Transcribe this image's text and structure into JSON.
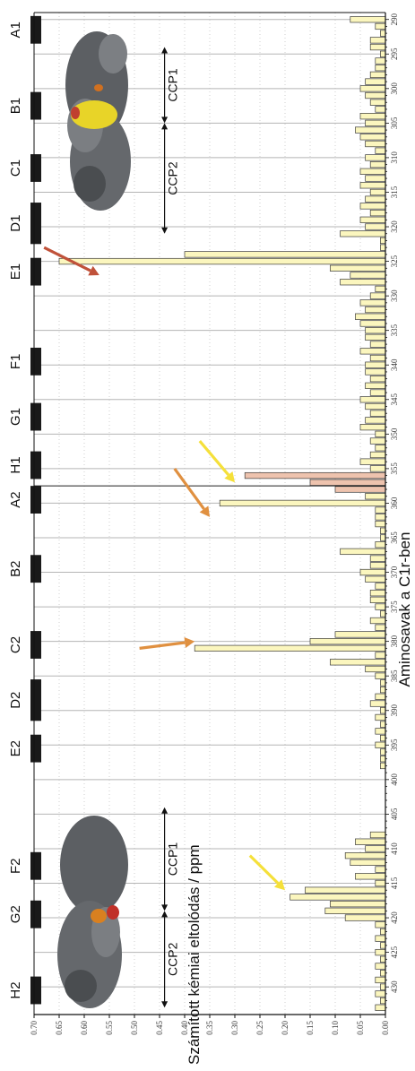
{
  "chart_data": {
    "type": "bar",
    "orientation": "horizontal",
    "xlabel": "Aminosavak a C1r-ben",
    "ylabel": "Számított kémiai eltolódás / ppm",
    "ylim": [
      0,
      0.7
    ],
    "y_ticks": [
      "0.00",
      "0.05",
      "0.10",
      "0.15",
      "0.20",
      "0.25",
      "0.30",
      "0.35",
      "0.40",
      "0.45",
      "0.50",
      "0.55",
      "0.60",
      "0.65",
      "0.70"
    ],
    "xlim": [
      289,
      434
    ],
    "x_ticks": [
      "290",
      "295",
      "300",
      "305",
      "310",
      "315",
      "320",
      "325",
      "330",
      "335",
      "340",
      "345",
      "350",
      "355",
      "360",
      "365",
      "370",
      "375",
      "380",
      "385",
      "390",
      "395",
      "400",
      "405",
      "410",
      "415",
      "420",
      "425",
      "430"
    ],
    "colors": {
      "default_bar": "#FBF6BE",
      "highlight_bar": "#EEC3AE",
      "bar_stroke": "#3b3b3b",
      "strand": "#1a1a1a"
    },
    "values": [
      {
        "x": 290,
        "y": 0.07
      },
      {
        "x": 291,
        "y": 0.02
      },
      {
        "x": 292,
        "y": 0.01
      },
      {
        "x": 293,
        "y": 0.03
      },
      {
        "x": 294,
        "y": 0.03
      },
      {
        "x": 295,
        "y": 0.01
      },
      {
        "x": 296,
        "y": 0.02
      },
      {
        "x": 297,
        "y": 0.02
      },
      {
        "x": 298,
        "y": 0.03
      },
      {
        "x": 299,
        "y": 0.04
      },
      {
        "x": 300,
        "y": 0.05
      },
      {
        "x": 301,
        "y": 0.04
      },
      {
        "x": 302,
        "y": 0.03
      },
      {
        "x": 303,
        "y": 0.02
      },
      {
        "x": 304,
        "y": 0.05
      },
      {
        "x": 305,
        "y": 0.04
      },
      {
        "x": 306,
        "y": 0.06
      },
      {
        "x": 307,
        "y": 0.05
      },
      {
        "x": 308,
        "y": 0.04
      },
      {
        "x": 309,
        "y": 0.02
      },
      {
        "x": 310,
        "y": 0.04
      },
      {
        "x": 311,
        "y": 0.03
      },
      {
        "x": 312,
        "y": 0.05
      },
      {
        "x": 313,
        "y": 0.04
      },
      {
        "x": 314,
        "y": 0.05
      },
      {
        "x": 315,
        "y": 0.03
      },
      {
        "x": 316,
        "y": 0.04
      },
      {
        "x": 317,
        "y": 0.05
      },
      {
        "x": 318,
        "y": 0.03
      },
      {
        "x": 319,
        "y": 0.05
      },
      {
        "x": 320,
        "y": 0.04
      },
      {
        "x": 321,
        "y": 0.09
      },
      {
        "x": 322,
        "y": 0.01
      },
      {
        "x": 323,
        "y": 0.01
      },
      {
        "x": 324,
        "y": 0.4
      },
      {
        "x": 325,
        "y": 0.65
      },
      {
        "x": 326,
        "y": 0.11
      },
      {
        "x": 327,
        "y": 0.07
      },
      {
        "x": 328,
        "y": 0.09
      },
      {
        "x": 329,
        "y": 0.02
      },
      {
        "x": 330,
        "y": 0.03
      },
      {
        "x": 331,
        "y": 0.05
      },
      {
        "x": 332,
        "y": 0.04
      },
      {
        "x": 333,
        "y": 0.06
      },
      {
        "x": 334,
        "y": 0.05
      },
      {
        "x": 335,
        "y": 0.04
      },
      {
        "x": 336,
        "y": 0.04
      },
      {
        "x": 337,
        "y": 0.03
      },
      {
        "x": 338,
        "y": 0.05
      },
      {
        "x": 339,
        "y": 0.03
      },
      {
        "x": 340,
        "y": 0.04
      },
      {
        "x": 341,
        "y": 0.04
      },
      {
        "x": 342,
        "y": 0.03
      },
      {
        "x": 343,
        "y": 0.04
      },
      {
        "x": 344,
        "y": 0.03
      },
      {
        "x": 345,
        "y": 0.05
      },
      {
        "x": 346,
        "y": 0.04
      },
      {
        "x": 347,
        "y": 0.03
      },
      {
        "x": 348,
        "y": 0.04
      },
      {
        "x": 349,
        "y": 0.05
      },
      {
        "x": 350,
        "y": 0.02
      },
      {
        "x": 351,
        "y": 0.03
      },
      {
        "x": 352,
        "y": 0.02
      },
      {
        "x": 353,
        "y": 0.03
      },
      {
        "x": 354,
        "y": 0.05
      },
      {
        "x": 355,
        "y": 0.03
      },
      {
        "x": 356,
        "y": 0.28,
        "highlight": true
      },
      {
        "x": 357,
        "y": 0.15,
        "highlight": true
      },
      {
        "x": 358,
        "y": 0.1,
        "highlight": true
      },
      {
        "x": 359,
        "y": 0.04
      },
      {
        "x": 360,
        "y": 0.33
      },
      {
        "x": 361,
        "y": 0.02
      },
      {
        "x": 362,
        "y": 0.02
      },
      {
        "x": 363,
        "y": 0.02
      },
      {
        "x": 364,
        "y": 0.01
      },
      {
        "x": 365,
        "y": 0.01
      },
      {
        "x": 366,
        "y": 0.02
      },
      {
        "x": 367,
        "y": 0.09
      },
      {
        "x": 368,
        "y": 0.03
      },
      {
        "x": 369,
        "y": 0.03
      },
      {
        "x": 370,
        "y": 0.05
      },
      {
        "x": 371,
        "y": 0.04
      },
      {
        "x": 372,
        "y": 0.02
      },
      {
        "x": 373,
        "y": 0.03
      },
      {
        "x": 374,
        "y": 0.03
      },
      {
        "x": 375,
        "y": 0.02
      },
      {
        "x": 376,
        "y": 0.01
      },
      {
        "x": 377,
        "y": 0.03
      },
      {
        "x": 378,
        "y": 0.02
      },
      {
        "x": 379,
        "y": 0.1
      },
      {
        "x": 380,
        "y": 0.15
      },
      {
        "x": 381,
        "y": 0.38
      },
      {
        "x": 382,
        "y": 0.02
      },
      {
        "x": 383,
        "y": 0.11
      },
      {
        "x": 384,
        "y": 0.04
      },
      {
        "x": 385,
        "y": 0.02
      },
      {
        "x": 386,
        "y": 0.01
      },
      {
        "x": 387,
        "y": 0.01
      },
      {
        "x": 388,
        "y": 0.02
      },
      {
        "x": 389,
        "y": 0.03
      },
      {
        "x": 390,
        "y": 0.01
      },
      {
        "x": 391,
        "y": 0.02
      },
      {
        "x": 392,
        "y": 0.01
      },
      {
        "x": 393,
        "y": 0.02
      },
      {
        "x": 394,
        "y": 0.01
      },
      {
        "x": 395,
        "y": 0.02
      },
      {
        "x": 396,
        "y": 0.01
      },
      {
        "x": 397,
        "y": 0.01
      },
      {
        "x": 398,
        "y": 0.01
      },
      {
        "x": 408,
        "y": 0.03
      },
      {
        "x": 409,
        "y": 0.06
      },
      {
        "x": 410,
        "y": 0.04
      },
      {
        "x": 411,
        "y": 0.08
      },
      {
        "x": 412,
        "y": 0.07
      },
      {
        "x": 413,
        "y": 0.02
      },
      {
        "x": 414,
        "y": 0.06
      },
      {
        "x": 415,
        "y": 0.02
      },
      {
        "x": 416,
        "y": 0.16
      },
      {
        "x": 417,
        "y": 0.19
      },
      {
        "x": 418,
        "y": 0.11
      },
      {
        "x": 419,
        "y": 0.12
      },
      {
        "x": 420,
        "y": 0.08
      },
      {
        "x": 421,
        "y": 0.02
      },
      {
        "x": 422,
        "y": 0.01
      },
      {
        "x": 423,
        "y": 0.02
      },
      {
        "x": 424,
        "y": 0.01
      },
      {
        "x": 425,
        "y": 0.02
      },
      {
        "x": 426,
        "y": 0.01
      },
      {
        "x": 427,
        "y": 0.02
      },
      {
        "x": 428,
        "y": 0.01
      },
      {
        "x": 429,
        "y": 0.02
      },
      {
        "x": 430,
        "y": 0.01
      },
      {
        "x": 431,
        "y": 0.02
      },
      {
        "x": 432,
        "y": 0.01
      },
      {
        "x": 433,
        "y": 0.02
      }
    ],
    "strands": [
      {
        "label": "A1",
        "from": 290,
        "to": 293
      },
      {
        "label": "B1",
        "from": 301,
        "to": 304
      },
      {
        "label": "C1",
        "from": 310,
        "to": 313
      },
      {
        "label": "D1",
        "from": 317,
        "to": 322
      },
      {
        "label": "E1",
        "from": 325,
        "to": 328
      },
      {
        "label": "F1",
        "from": 338,
        "to": 341
      },
      {
        "label": "G1",
        "from": 346,
        "to": 349
      },
      {
        "label": "H1",
        "from": 353,
        "to": 356
      },
      {
        "label": "A2",
        "from": 358,
        "to": 361
      },
      {
        "label": "B2",
        "from": 368,
        "to": 371
      },
      {
        "label": "C2",
        "from": 379,
        "to": 382
      },
      {
        "label": "D2",
        "from": 386,
        "to": 391
      },
      {
        "label": "E2",
        "from": 394,
        "to": 397
      },
      {
        "label": "F2",
        "from": 411,
        "to": 414
      },
      {
        "label": "G2",
        "from": 418,
        "to": 421
      },
      {
        "label": "H2",
        "from": 429,
        "to": 432
      }
    ],
    "domain_spans": [
      {
        "label": "CCP1",
        "from": 294,
        "to": 305,
        "value": 0.44
      },
      {
        "label": "CCP2",
        "from": 305,
        "to": 321,
        "value": 0.44
      },
      {
        "label": "CCP1",
        "from": 404,
        "to": 419,
        "value": 0.44
      },
      {
        "label": "CCP2",
        "from": 419,
        "to": 433,
        "value": 0.44
      }
    ],
    "arrows": [
      {
        "color": "#C0523A",
        "x": 327,
        "y": 0.57,
        "dx": -4,
        "dy": 0.11
      },
      {
        "color": "#F5E03A",
        "x": 357,
        "y": 0.3,
        "dx": -6,
        "dy": 0.07
      },
      {
        "color": "#E09040",
        "x": 362,
        "y": 0.35,
        "dx": -7,
        "dy": 0.07
      },
      {
        "color": "#E09040",
        "x": 380,
        "y": 0.38,
        "dx": 1,
        "dy": 0.11
      },
      {
        "color": "#F5E03A",
        "x": 416,
        "y": 0.2,
        "dx": -5,
        "dy": 0.07
      }
    ],
    "grid": {
      "major": true,
      "minor": "dotted"
    }
  }
}
